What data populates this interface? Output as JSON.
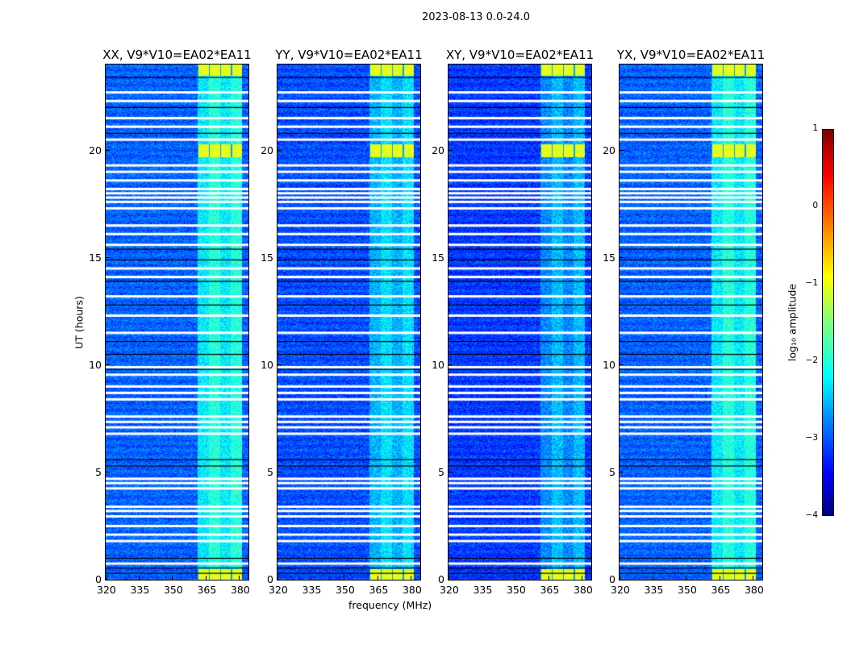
{
  "chart_data": {
    "type": "heatmap",
    "suptitle": "2023-08-13 0.0-24.0",
    "xlabel": "frequency (MHz)",
    "ylabel": "UT (hours)",
    "xlim": [
      320,
      384
    ],
    "ylim": [
      0,
      24
    ],
    "xticks": [
      320,
      335,
      350,
      365,
      380
    ],
    "yticks": [
      0,
      5,
      10,
      15,
      20
    ],
    "panels": [
      {
        "title": "XX, V9*V10=EA02*EA11",
        "background_log_amp": -2.9,
        "band_log_amp": -2.1
      },
      {
        "title": "YY, V9*V10=EA02*EA11",
        "background_log_amp": -3.0,
        "band_log_amp": -2.4
      },
      {
        "title": "XY, V9*V10=EA02*EA11",
        "background_log_amp": -3.1,
        "band_log_amp": -2.6
      },
      {
        "title": "YX, V9*V10=EA02*EA11",
        "background_log_amp": -2.9,
        "band_log_amp": -2.1
      }
    ],
    "rfi_band_mhz": [
      361,
      381
    ],
    "strong_rfi_hours": [
      [
        0,
        0.5
      ],
      [
        19.7,
        20.3
      ],
      [
        23.5,
        24
      ]
    ],
    "strong_rfi_log_amp": -1.0,
    "flagged_hours": [
      0.75,
      1.8,
      2.1,
      2.5,
      2.95,
      3.2,
      3.4,
      4.25,
      4.5,
      4.7,
      6.8,
      7.1,
      7.35,
      7.6,
      8.4,
      8.7,
      9.0,
      9.55,
      9.9,
      11.5,
      12.3,
      13.2,
      14.1,
      14.5,
      15.6,
      16.1,
      16.5,
      17.3,
      17.6,
      17.8,
      18.0,
      18.2,
      18.6,
      19.0,
      19.3,
      20.5,
      21.1,
      21.5,
      22.3,
      22.7
    ],
    "black_line_hours": [
      0.3,
      0.55,
      1.0,
      5.3,
      5.6,
      9.8,
      10.5,
      11.1,
      12.8,
      13.9,
      14.9,
      15.4,
      20.8,
      22.0,
      23.4
    ],
    "colorbar": {
      "label": "log₁₀ amplitude",
      "min": -4,
      "max": 1,
      "ticks": [
        -4,
        -3,
        -2,
        -1,
        0,
        1
      ],
      "tick_labels": [
        "−4",
        "−3",
        "−2",
        "−1",
        "0",
        "1"
      ],
      "colormap": "jet"
    }
  }
}
